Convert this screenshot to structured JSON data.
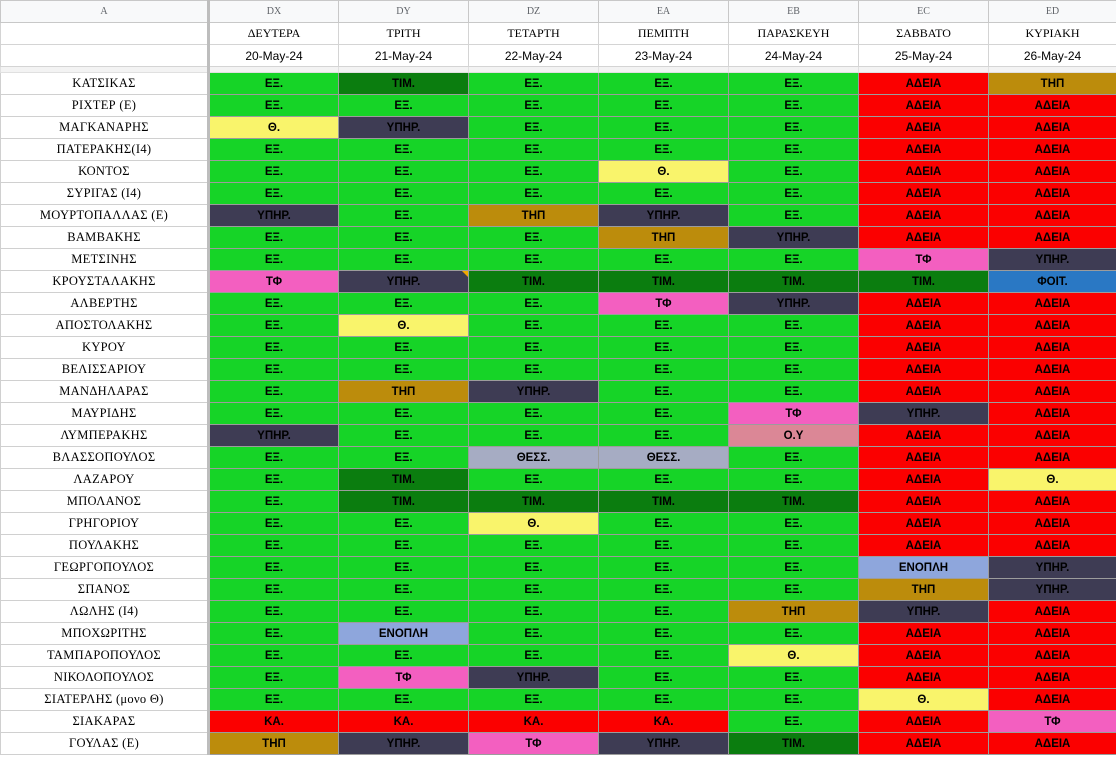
{
  "columns": [
    "A",
    "DX",
    "DY",
    "DZ",
    "EA",
    "EB",
    "EC",
    "ED"
  ],
  "days": [
    "ΔΕΥΤΕΡΑ",
    "ΤΡΙΤΗ",
    "ΤΕΤΑΡΤΗ",
    "ΠΕΜΠΤΗ",
    "ΠΑΡΑΣΚΕΥΗ",
    "ΣΑΒΒΑΤΟ",
    "ΚΥΡΙΑΚΗ"
  ],
  "dates": [
    "20-May-24",
    "21-May-24",
    "22-May-24",
    "23-May-24",
    "24-May-24",
    "25-May-24",
    "26-May-24"
  ],
  "legend_colors": {
    "ΕΞ.": "#16d427",
    "ΤΙΜ.": "#0b7d0f",
    "ΑΔΕΙΑ": "#fb0000",
    "ΤΗΠ": "#bc8c0c",
    "ΥΠΗΡ.": "#3e3c54",
    "Θ.": "#f9f46b",
    "ΤΦ": "#f35fc0",
    "ΦΟΙΤ.": "#2a78c4",
    "ΘΕΣΣ.": "#a6acc3",
    "Ο.Υ": "#db8796",
    "ΕΝΟΠΛΗ": "#8ea6dc",
    "ΚΑ.": "#fb0000"
  },
  "rows": [
    {
      "name": "ΚΑΤΣΙΚΑΣ",
      "cells": [
        "ΕΞ.",
        "ΤΙΜ.",
        "ΕΞ.",
        "ΕΞ.",
        "ΕΞ.",
        "ΑΔΕΙΑ",
        "ΤΗΠ"
      ]
    },
    {
      "name": "ΡΙΧΤΕΡ (Ε)",
      "cells": [
        "ΕΞ.",
        "ΕΞ.",
        "ΕΞ.",
        "ΕΞ.",
        "ΕΞ.",
        "ΑΔΕΙΑ",
        "ΑΔΕΙΑ"
      ]
    },
    {
      "name": "ΜΑΓΚΑΝΑΡΗΣ",
      "cells": [
        "Θ.",
        "ΥΠΗΡ.",
        "ΕΞ.",
        "ΕΞ.",
        "ΕΞ.",
        "ΑΔΕΙΑ",
        "ΑΔΕΙΑ"
      ]
    },
    {
      "name": "ΠΑΤΕΡΑΚΗΣ(Ι4)",
      "cells": [
        "ΕΞ.",
        "ΕΞ.",
        "ΕΞ.",
        "ΕΞ.",
        "ΕΞ.",
        "ΑΔΕΙΑ",
        "ΑΔΕΙΑ"
      ]
    },
    {
      "name": "ΚΟΝΤΟΣ",
      "cells": [
        "ΕΞ.",
        "ΕΞ.",
        "ΕΞ.",
        "Θ.",
        "ΕΞ.",
        "ΑΔΕΙΑ",
        "ΑΔΕΙΑ"
      ]
    },
    {
      "name": "ΣΥΡΙΓΑΣ (Ι4)",
      "cells": [
        "ΕΞ.",
        "ΕΞ.",
        "ΕΞ.",
        "ΕΞ.",
        "ΕΞ.",
        "ΑΔΕΙΑ",
        "ΑΔΕΙΑ"
      ]
    },
    {
      "name": "ΜΟΥΡΤΟΠΑΛΛΑΣ (Ε)",
      "cells": [
        "ΥΠΗΡ.",
        "ΕΞ.",
        "ΤΗΠ",
        "ΥΠΗΡ.",
        "ΕΞ.",
        "ΑΔΕΙΑ",
        "ΑΔΕΙΑ"
      ]
    },
    {
      "name": "ΒΑΜΒΑΚΗΣ",
      "cells": [
        "ΕΞ.",
        "ΕΞ.",
        "ΕΞ.",
        "ΤΗΠ",
        "ΥΠΗΡ.",
        "ΑΔΕΙΑ",
        "ΑΔΕΙΑ"
      ]
    },
    {
      "name": "ΜΕΤΣΙΝΗΣ",
      "cells": [
        "ΕΞ.",
        "ΕΞ.",
        "ΕΞ.",
        "ΕΞ.",
        "ΕΞ.",
        "ΤΦ",
        "ΥΠΗΡ."
      ]
    },
    {
      "name": "ΚΡΟΥΣΤΑΛΑΚΗΣ",
      "cells": [
        "ΤΦ",
        "ΥΠΗΡ.",
        "ΤΙΜ.",
        "ΤΙΜ.",
        "ΤΙΜ.",
        "ΤΙΜ.",
        "ΦΟΙΤ."
      ]
    },
    {
      "name": "ΑΛΒΕΡΤΗΣ",
      "cells": [
        "ΕΞ.",
        "ΕΞ.",
        "ΕΞ.",
        "ΤΦ",
        "ΥΠΗΡ.",
        "ΑΔΕΙΑ",
        "ΑΔΕΙΑ"
      ]
    },
    {
      "name": "ΑΠΟΣΤΟΛΑΚΗΣ",
      "cells": [
        "ΕΞ.",
        "Θ.",
        "ΕΞ.",
        "ΕΞ.",
        "ΕΞ.",
        "ΑΔΕΙΑ",
        "ΑΔΕΙΑ"
      ]
    },
    {
      "name": "ΚΥΡΟΥ",
      "cells": [
        "ΕΞ.",
        "ΕΞ.",
        "ΕΞ.",
        "ΕΞ.",
        "ΕΞ.",
        "ΑΔΕΙΑ",
        "ΑΔΕΙΑ"
      ]
    },
    {
      "name": "ΒΕΛΙΣΣΑΡΙΟΥ",
      "cells": [
        "ΕΞ.",
        "ΕΞ.",
        "ΕΞ.",
        "ΕΞ.",
        "ΕΞ.",
        "ΑΔΕΙΑ",
        "ΑΔΕΙΑ"
      ]
    },
    {
      "name": "ΜΑΝΔΗΛΑΡΑΣ",
      "cells": [
        "ΕΞ.",
        "ΤΗΠ",
        "ΥΠΗΡ.",
        "ΕΞ.",
        "ΕΞ.",
        "ΑΔΕΙΑ",
        "ΑΔΕΙΑ"
      ]
    },
    {
      "name": "ΜΑΥΡΙΔΗΣ",
      "cells": [
        "ΕΞ.",
        "ΕΞ.",
        "ΕΞ.",
        "ΕΞ.",
        "ΤΦ",
        "ΥΠΗΡ.",
        "ΑΔΕΙΑ"
      ]
    },
    {
      "name": "ΛΥΜΠΕΡΑΚΗΣ",
      "cells": [
        "ΥΠΗΡ.",
        "ΕΞ.",
        "ΕΞ.",
        "ΕΞ.",
        "Ο.Υ",
        "ΑΔΕΙΑ",
        "ΑΔΕΙΑ"
      ]
    },
    {
      "name": "ΒΛΑΣΣΟΠΟΥΛΟΣ",
      "cells": [
        "ΕΞ.",
        "ΕΞ.",
        "ΘΕΣΣ.",
        "ΘΕΣΣ.",
        "ΕΞ.",
        "ΑΔΕΙΑ",
        "ΑΔΕΙΑ"
      ]
    },
    {
      "name": "ΛΑΖΑΡΟΥ",
      "cells": [
        "ΕΞ.",
        "ΤΙΜ.",
        "ΕΞ.",
        "ΕΞ.",
        "ΕΞ.",
        "ΑΔΕΙΑ",
        "Θ."
      ]
    },
    {
      "name": "ΜΠΟΛΑΝΟΣ",
      "cells": [
        "ΕΞ.",
        "ΤΙΜ.",
        "ΤΙΜ.",
        "ΤΙΜ.",
        "ΤΙΜ.",
        "ΑΔΕΙΑ",
        "ΑΔΕΙΑ"
      ]
    },
    {
      "name": "ΓΡΗΓΟΡΙΟΥ",
      "cells": [
        "ΕΞ.",
        "ΕΞ.",
        "Θ.",
        "ΕΞ.",
        "ΕΞ.",
        "ΑΔΕΙΑ",
        "ΑΔΕΙΑ"
      ]
    },
    {
      "name": "ΠΟΥΛΑΚΗΣ",
      "cells": [
        "ΕΞ.",
        "ΕΞ.",
        "ΕΞ.",
        "ΕΞ.",
        "ΕΞ.",
        "ΑΔΕΙΑ",
        "ΑΔΕΙΑ"
      ]
    },
    {
      "name": "ΓΕΩΡΓΟΠΟΥΛΟΣ",
      "cells": [
        "ΕΞ.",
        "ΕΞ.",
        "ΕΞ.",
        "ΕΞ.",
        "ΕΞ.",
        "ΕΝΟΠΛΗ",
        "ΥΠΗΡ."
      ]
    },
    {
      "name": "ΣΠΑΝΟΣ",
      "cells": [
        "ΕΞ.",
        "ΕΞ.",
        "ΕΞ.",
        "ΕΞ.",
        "ΕΞ.",
        "ΤΗΠ",
        "ΥΠΗΡ."
      ]
    },
    {
      "name": "ΛΩΛΗΣ (Ι4)",
      "cells": [
        "ΕΞ.",
        "ΕΞ.",
        "ΕΞ.",
        "ΕΞ.",
        "ΤΗΠ",
        "ΥΠΗΡ.",
        "ΑΔΕΙΑ"
      ]
    },
    {
      "name": "ΜΠΟΧΩΡΙΤΗΣ",
      "cells": [
        "ΕΞ.",
        "ΕΝΟΠΛΗ",
        "ΕΞ.",
        "ΕΞ.",
        "ΕΞ.",
        "ΑΔΕΙΑ",
        "ΑΔΕΙΑ"
      ]
    },
    {
      "name": "ΤΑΜΠΑΡΟΠΟΥΛΟΣ",
      "cells": [
        "ΕΞ.",
        "ΕΞ.",
        "ΕΞ.",
        "ΕΞ.",
        "Θ.",
        "ΑΔΕΙΑ",
        "ΑΔΕΙΑ"
      ]
    },
    {
      "name": "ΝΙΚΟΛΟΠΟΥΛΟΣ",
      "cells": [
        "ΕΞ.",
        "ΤΦ",
        "ΥΠΗΡ.",
        "ΕΞ.",
        "ΕΞ.",
        "ΑΔΕΙΑ",
        "ΑΔΕΙΑ"
      ]
    },
    {
      "name": "ΣΙΑΤΕΡΛΗΣ (μονο Θ)",
      "cells": [
        "ΕΞ.",
        "ΕΞ.",
        "ΕΞ.",
        "ΕΞ.",
        "ΕΞ.",
        "Θ.",
        "ΑΔΕΙΑ"
      ]
    },
    {
      "name": "ΣΙΑΚΑΡΑΣ",
      "cells": [
        "ΚΑ.",
        "ΚΑ.",
        "ΚΑ.",
        "ΚΑ.",
        "ΕΞ.",
        "ΑΔΕΙΑ",
        "ΤΦ"
      ]
    },
    {
      "name": "ΓΟΥΛΑΣ (Ε)",
      "cells": [
        "ΤΗΠ",
        "ΥΠΗΡ.",
        "ΤΦ",
        "ΥΠΗΡ.",
        "ΤΙΜ.",
        "ΑΔΕΙΑ",
        "ΑΔΕΙΑ"
      ]
    }
  ]
}
